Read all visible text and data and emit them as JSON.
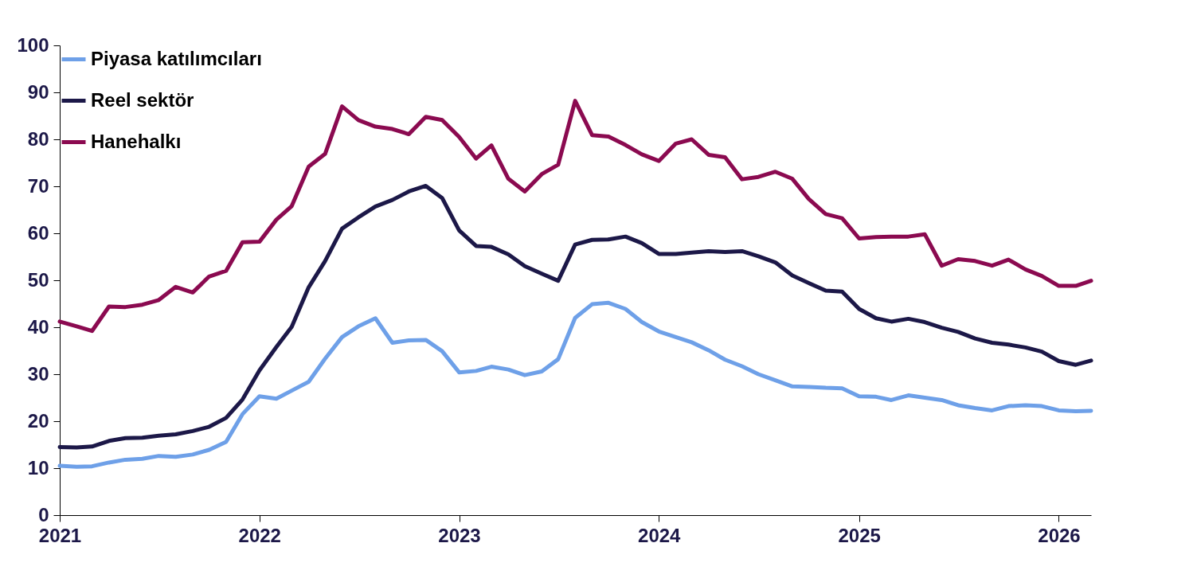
{
  "chart_data": {
    "type": "line",
    "x": [
      "2021-01",
      "2021-02",
      "2021-03",
      "2021-04",
      "2021-05",
      "2021-06",
      "2021-07",
      "2021-08",
      "2021-09",
      "2021-10",
      "2021-11",
      "2021-12",
      "2022-01",
      "2022-02",
      "2022-03",
      "2022-04",
      "2022-05",
      "2022-06",
      "2022-07",
      "2022-08",
      "2022-09",
      "2022-10",
      "2022-11",
      "2022-12",
      "2023-01",
      "2023-02",
      "2023-03",
      "2023-04",
      "2023-05",
      "2023-06",
      "2023-07",
      "2023-08",
      "2023-09",
      "2023-10",
      "2023-11",
      "2023-12",
      "2024-01",
      "2024-02",
      "2024-03",
      "2024-04",
      "2024-05",
      "2024-06",
      "2024-07",
      "2024-08",
      "2024-09",
      "2024-10",
      "2024-11",
      "2024-12",
      "2025-01",
      "2025-02",
      "2025-03",
      "2025-04",
      "2025-05",
      "2025-06",
      "2025-07",
      "2025-08",
      "2025-09",
      "2025-10",
      "2025-11",
      "2025-12",
      "2026-01",
      "2026-02",
      "2026-03"
    ],
    "series": [
      {
        "name": "Piyasa katılımcıları",
        "color": "#6ea0e8",
        "values": [
          10.5,
          10.3,
          10.4,
          11.2,
          11.8,
          12.0,
          12.6,
          12.4,
          12.9,
          13.9,
          15.6,
          21.5,
          25.3,
          24.8,
          26.5,
          28.4,
          33.3,
          37.9,
          40.2,
          41.9,
          36.7,
          37.2,
          37.3,
          34.9,
          30.4,
          30.7,
          31.6,
          31.0,
          29.8,
          30.6,
          33.2,
          42.0,
          44.9,
          45.2,
          43.9,
          41.1,
          39.1,
          37.9,
          36.8,
          35.1,
          33.1,
          31.7,
          30.0,
          28.7,
          27.4,
          27.3,
          27.1,
          27.0,
          25.3,
          25.2,
          24.5,
          25.5,
          25.0,
          24.5,
          23.4,
          22.8,
          22.3,
          23.2,
          23.4,
          23.2,
          22.3,
          22.1,
          22.2
        ]
      },
      {
        "name": "Reel sektör",
        "color": "#1c1848",
        "values": [
          14.5,
          14.4,
          14.6,
          15.8,
          16.4,
          16.5,
          16.9,
          17.2,
          17.9,
          18.8,
          20.7,
          24.6,
          30.8,
          35.8,
          40.1,
          48.5,
          54.1,
          61.0,
          63.4,
          65.7,
          67.1,
          68.9,
          70.1,
          67.5,
          60.6,
          57.3,
          57.1,
          55.5,
          53.0,
          51.4,
          49.9,
          57.6,
          58.6,
          58.7,
          59.3,
          57.9,
          55.6,
          55.6,
          55.9,
          56.2,
          56.0,
          56.2,
          55.1,
          53.8,
          51.0,
          49.4,
          47.8,
          47.6,
          43.9,
          41.9,
          41.2,
          41.8,
          41.1,
          39.9,
          39.0,
          37.6,
          36.7,
          36.3,
          35.7,
          34.8,
          32.8,
          32.0,
          32.9
        ]
      },
      {
        "name": "Hanehalkı",
        "color": "#8b0a50",
        "values": [
          41.2,
          40.2,
          39.2,
          44.4,
          44.3,
          44.8,
          45.8,
          48.6,
          47.4,
          50.8,
          52.0,
          58.1,
          58.2,
          62.9,
          65.8,
          74.2,
          76.9,
          87.0,
          84.1,
          82.7,
          82.2,
          81.1,
          84.8,
          84.1,
          80.5,
          75.9,
          78.7,
          71.6,
          68.9,
          72.6,
          74.6,
          88.2,
          80.9,
          80.6,
          78.8,
          76.8,
          75.4,
          79.1,
          80.0,
          76.7,
          76.2,
          71.5,
          72.0,
          73.1,
          71.6,
          67.3,
          64.1,
          63.2,
          58.9,
          59.2,
          59.3,
          59.3,
          59.8,
          53.1,
          54.5,
          54.1,
          53.1,
          54.4,
          52.3,
          50.9,
          48.8,
          48.8,
          49.9
        ]
      }
    ],
    "xlim": [
      "2021-01",
      "2026-03"
    ],
    "xticks": [
      "2021",
      "2022",
      "2023",
      "2024",
      "2025",
      "2026"
    ],
    "ylim": [
      0,
      100
    ],
    "yticks": [
      0,
      10,
      20,
      30,
      40,
      50,
      60,
      70,
      80,
      90,
      100
    ],
    "grid": false,
    "legend": "top left",
    "marker": "none",
    "line_style": "solid"
  }
}
